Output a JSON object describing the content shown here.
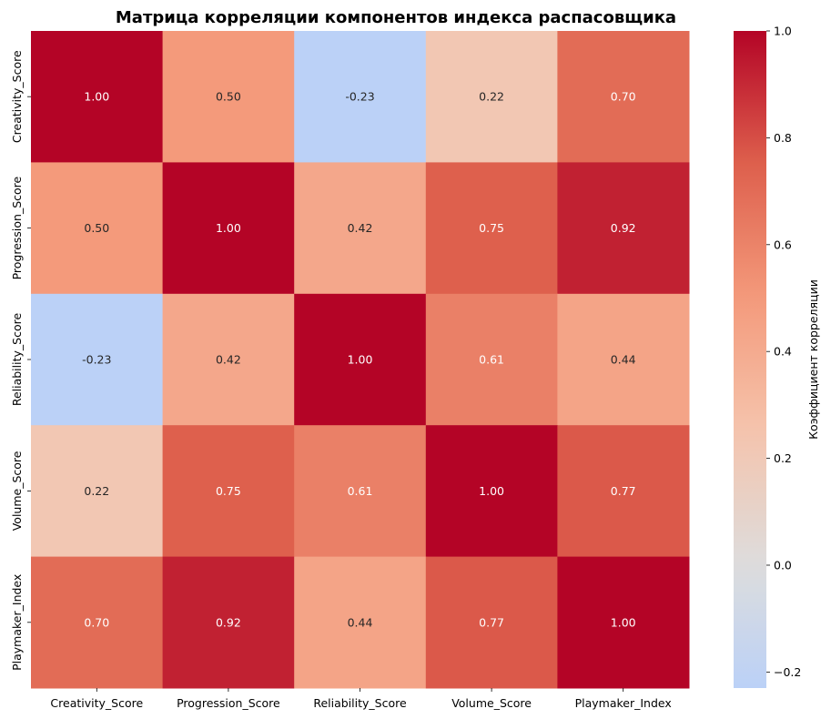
{
  "chart_data": {
    "type": "heatmap",
    "title": "Матрица корреляции компонентов индекса распасовщика",
    "x_labels": [
      "Creativity_Score",
      "Progression_Score",
      "Reliability_Score",
      "Volume_Score",
      "Playmaker_Index"
    ],
    "y_labels": [
      "Creativity_Score",
      "Progression_Score",
      "Reliability_Score",
      "Volume_Score",
      "Playmaker_Index"
    ],
    "values": [
      [
        1.0,
        0.5,
        -0.23,
        0.22,
        0.7
      ],
      [
        0.5,
        1.0,
        0.42,
        0.75,
        0.92
      ],
      [
        -0.23,
        0.42,
        1.0,
        0.61,
        0.44
      ],
      [
        0.22,
        0.75,
        0.61,
        1.0,
        0.77
      ],
      [
        0.7,
        0.92,
        0.44,
        0.77,
        1.0
      ]
    ],
    "annotations": [
      [
        "1.00",
        "0.50",
        "-0.23",
        "0.22",
        "0.70"
      ],
      [
        "0.50",
        "1.00",
        "0.42",
        "0.75",
        "0.92"
      ],
      [
        "-0.23",
        "0.42",
        "1.00",
        "0.61",
        "0.44"
      ],
      [
        "0.22",
        "0.75",
        "0.61",
        "1.00",
        "0.77"
      ],
      [
        "0.70",
        "0.92",
        "0.44",
        "0.77",
        "1.00"
      ]
    ],
    "colormap": "coolwarm",
    "vmin": -0.23,
    "vmax": 1.0,
    "colorbar": {
      "label": "Коэффициент корреляции",
      "ticks": [
        1.0,
        0.8,
        0.6,
        0.4,
        0.2,
        0.0,
        -0.2
      ],
      "tick_labels": [
        "1.0",
        "0.8",
        "0.6",
        "0.4",
        "0.2",
        "0.0",
        "−0.2"
      ]
    }
  }
}
